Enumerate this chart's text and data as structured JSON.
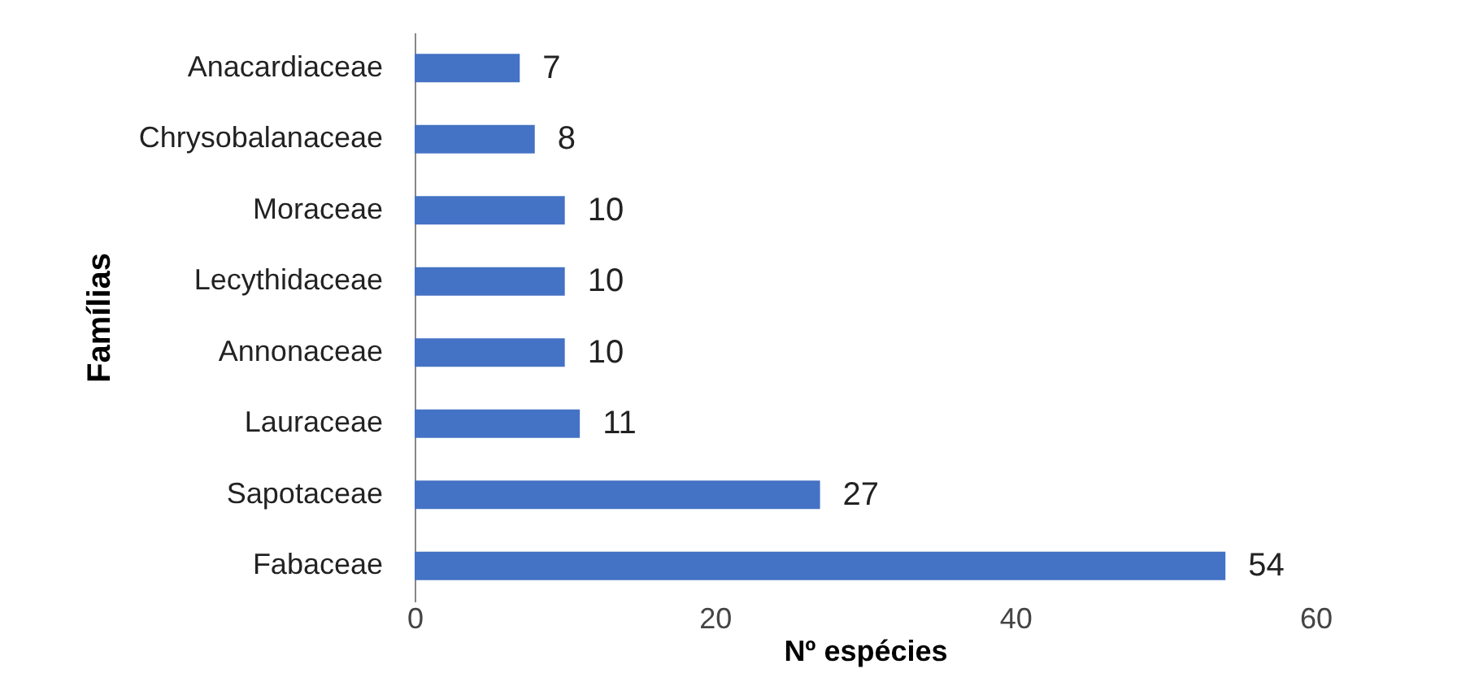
{
  "chart_data": {
    "type": "bar",
    "orientation": "horizontal",
    "xlabel": "Nº  espécies",
    "ylabel": "Famílias",
    "categories": [
      "Anacardiaceae",
      "Chrysobalanaceae",
      "Moraceae",
      "Lecythidaceae",
      "Annonaceae",
      "Lauraceae",
      "Sapotaceae",
      "Fabaceae"
    ],
    "values": [
      7,
      8,
      10,
      10,
      10,
      11,
      27,
      54
    ],
    "color": "#4472c4",
    "xlim": [
      0,
      60
    ],
    "xticks": [
      0,
      20,
      40,
      60
    ],
    "grid": false,
    "data_labels": true
  }
}
